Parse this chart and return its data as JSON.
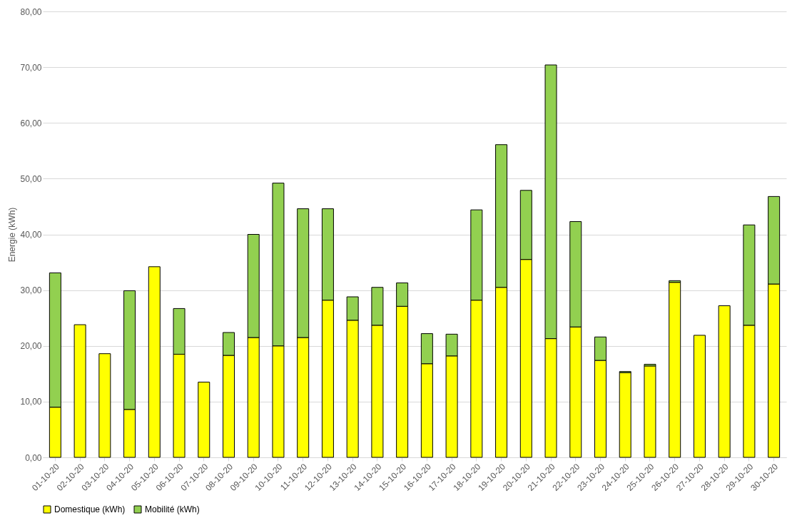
{
  "chart_data": {
    "type": "bar",
    "stacked": true,
    "ylabel": "Energie (kWh)",
    "categories": [
      "01-10-20",
      "02-10-20",
      "03-10-20",
      "04-10-20",
      "05-10-20",
      "06-10-20",
      "07-10-20",
      "08-10-20",
      "09-10-20",
      "10-10-20",
      "11-10-20",
      "12-10-20",
      "13-10-20",
      "14-10-20",
      "15-10-20",
      "16-10-20",
      "17-10-20",
      "18-10-20",
      "19-10-20",
      "20-10-20",
      "21-10-20",
      "22-10-20",
      "23-10-20",
      "24-10-20",
      "25-10-20",
      "26-10-20",
      "27-10-20",
      "28-10-20",
      "29-10-20",
      "30-10-20"
    ],
    "series": [
      {
        "name": "Domestique (kWh)",
        "color": "#ffff00",
        "values": [
          9.0,
          23.8,
          18.6,
          8.6,
          34.2,
          18.5,
          13.5,
          18.3,
          21.5,
          20.0,
          21.5,
          28.2,
          24.6,
          23.7,
          27.1,
          16.8,
          18.2,
          28.2,
          30.5,
          35.5,
          21.3,
          23.4,
          17.4,
          15.2,
          16.4,
          31.4,
          21.9,
          27.2,
          23.7,
          31.1
        ]
      },
      {
        "name": "Mobilité (kWh)",
        "color": "#92d050",
        "values": [
          24.1,
          null,
          null,
          21.3,
          null,
          8.2,
          null,
          4.1,
          18.5,
          29.2,
          23.1,
          16.4,
          4.2,
          6.8,
          4.2,
          5.4,
          3.9,
          16.2,
          25.6,
          12.4,
          49.1,
          18.9,
          4.2,
          0.2,
          0.3,
          0.3,
          null,
          null,
          18.0,
          15.7
        ]
      }
    ],
    "ylim": [
      0,
      80
    ],
    "yticks": [
      {
        "value": 0,
        "label": "0,00"
      },
      {
        "value": 10,
        "label": "10,00"
      },
      {
        "value": 20,
        "label": "20,00"
      },
      {
        "value": 30,
        "label": "30,00"
      },
      {
        "value": 40,
        "label": "40,00"
      },
      {
        "value": 50,
        "label": "50,00"
      },
      {
        "value": 60,
        "label": "60,00"
      },
      {
        "value": 70,
        "label": "70,00"
      },
      {
        "value": 80,
        "label": "80,00"
      }
    ],
    "grid": "y",
    "legend": "bottom"
  }
}
